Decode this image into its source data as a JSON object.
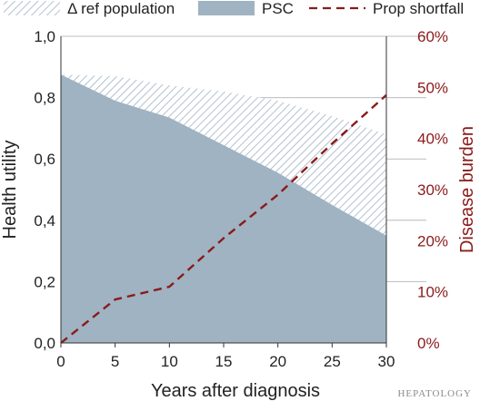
{
  "chart_data": {
    "type": "area",
    "x": [
      0,
      5,
      10,
      15,
      20,
      25,
      30
    ],
    "xlabel": "Years after diagnosis",
    "xlim": [
      0,
      30
    ],
    "xticks": [
      "0",
      "5",
      "10",
      "15",
      "20",
      "25",
      "30"
    ],
    "ylabel_left": "Health utility",
    "ylim_left": [
      0,
      1.0
    ],
    "yticks_left": [
      "0,0",
      "0,2",
      "0,4",
      "0,6",
      "0,8",
      "1,0"
    ],
    "ylabel_right": "Disease burden",
    "ylim_right": [
      0,
      60
    ],
    "yticks_right": [
      "0%",
      "10%",
      "20%",
      "30%",
      "40%",
      "50%",
      "60%"
    ],
    "grid": "horizontal",
    "legend_position": "top",
    "series": [
      {
        "name": "Δ ref population",
        "kind": "hatched-area",
        "axis": "left",
        "values": [
          0.875,
          0.87,
          0.84,
          0.82,
          0.79,
          0.74,
          0.68
        ]
      },
      {
        "name": "PSC",
        "kind": "filled-area",
        "axis": "left",
        "values": [
          0.875,
          0.79,
          0.735,
          0.645,
          0.555,
          0.45,
          0.35
        ]
      },
      {
        "name": "Prop shortfall",
        "kind": "dashed-line",
        "axis": "right",
        "values": [
          0,
          8.5,
          11,
          20.5,
          29,
          39,
          48.5
        ]
      }
    ],
    "colors": {
      "psc_fill": "#9fb3c2",
      "hatch": "#9fb3c2",
      "shortfall_line": "#8b1a1a",
      "right_axis_text": "#8b1a1a",
      "grid": "#bcbcbc",
      "axis": "#333333"
    }
  },
  "watermark": "HEPATOLOGY"
}
